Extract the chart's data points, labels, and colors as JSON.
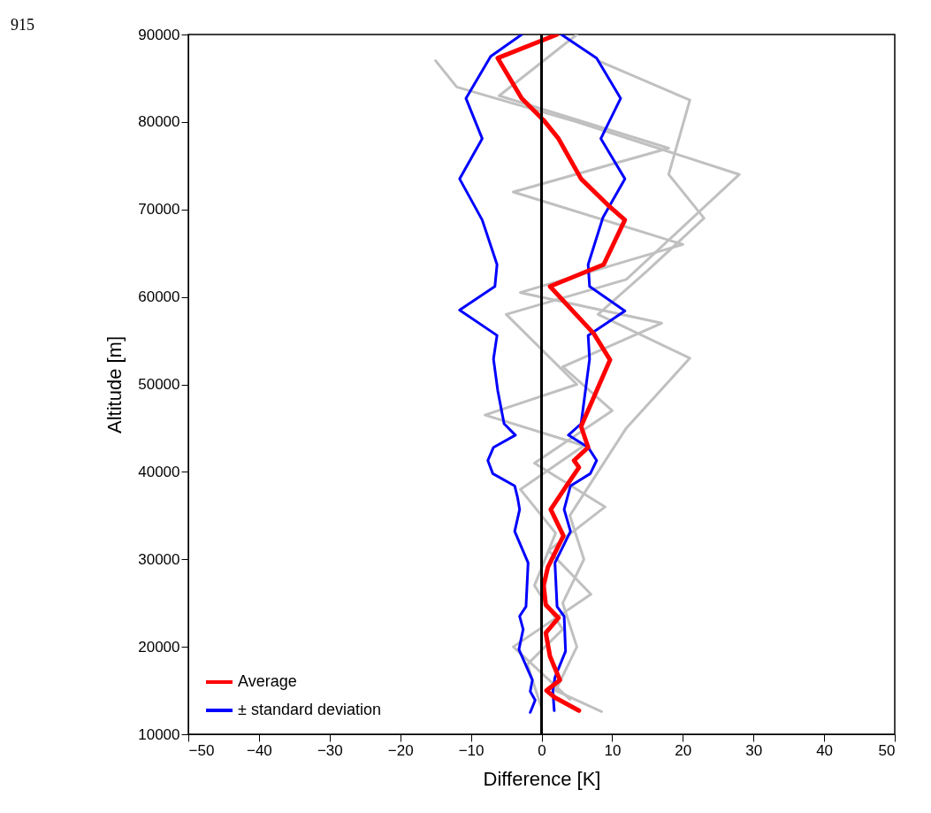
{
  "chart_data": {
    "type": "line",
    "xlabel": "Difference [K]",
    "ylabel": "Altitude [m]",
    "annotations": [
      "915"
    ],
    "xlim": [
      -50,
      50
    ],
    "xticks": [
      -50,
      -40,
      -30,
      -20,
      -10,
      0,
      10,
      20,
      30,
      40,
      50
    ],
    "ylim": [
      10000,
      90000
    ],
    "yticks": [
      10000,
      20000,
      30000,
      40000,
      50000,
      60000,
      70000,
      80000,
      90000
    ],
    "grid": false,
    "legend": "bottom left",
    "marker": "none",
    "line_style": "solid",
    "ref_lines": [
      {
        "axis": "x",
        "value": 0,
        "color": "#000000"
      }
    ],
    "series": [
      {
        "color": "#c0c0c0",
        "x": [
          8.5,
          2,
          5,
          3,
          6,
          4,
          8,
          12,
          21,
          8,
          15,
          23,
          18,
          21,
          8
        ],
        "values": [
          12600,
          15000,
          20000,
          25000,
          30000,
          35000,
          40000,
          45000,
          53000,
          58000,
          63000,
          69000,
          74000,
          82500,
          87000
        ]
      },
      {
        "color": "#c0c0c0",
        "x": [
          0,
          -2,
          3,
          -1,
          2,
          -3,
          6,
          -8,
          5,
          -5,
          12,
          28,
          5,
          -12,
          -15
        ],
        "values": [
          13000,
          18000,
          22000,
          27000,
          33000,
          38000,
          43000,
          46500,
          50000,
          58000,
          62000,
          74000,
          80000,
          84000,
          87000
        ]
      },
      {
        "color": "#c0c0c0",
        "x": [
          4,
          -4,
          7,
          1,
          9,
          -1,
          10,
          3,
          17,
          -3,
          20,
          -4,
          18,
          -6,
          5
        ],
        "values": [
          14000,
          20000,
          26000,
          31000,
          36000,
          41000,
          47000,
          52000,
          57000,
          60500,
          66000,
          72000,
          77000,
          83000,
          90000
        ]
      },
      {
        "name": "± standard deviation",
        "color": "#0000ff",
        "x": [
          -1.6,
          -0.9,
          -1.6,
          -1.3,
          -3.2,
          -2.6,
          -3.1,
          -2.2,
          -1.9,
          -3.8,
          -3.1,
          -3.4,
          -3.8,
          -6.9,
          -7.6,
          -6.8,
          -3.7,
          -5.3,
          -6.2,
          -6.8,
          -6.3,
          -11.6,
          -6.6,
          -6.3,
          -8.4,
          -11.6,
          -8.4,
          -10.7,
          -7.2,
          -2.8
        ],
        "values": [
          12500,
          13900,
          14900,
          16200,
          19700,
          22000,
          23500,
          24600,
          29600,
          33200,
          35700,
          37100,
          38400,
          39800,
          41300,
          42800,
          44200,
          45500,
          49300,
          52900,
          55600,
          58500,
          61200,
          63700,
          68800,
          73500,
          78100,
          82700,
          87500,
          90000
        ]
      },
      {
        "color": "#0000ff",
        "x": [
          1.8,
          1.6,
          1.9,
          3.4,
          3.2,
          2.2,
          1.9,
          4.1,
          3.2,
          4.1,
          6.9,
          7.8,
          6.6,
          3.8,
          5.6,
          6.8,
          6.6,
          11.8,
          6.8,
          6.6,
          8.7,
          11.8,
          8.4,
          11.2,
          7.8,
          2.8
        ],
        "values": [
          12700,
          14900,
          16500,
          19500,
          23500,
          24600,
          29600,
          33200,
          35700,
          38400,
          39800,
          41300,
          42800,
          44200,
          45500,
          52900,
          55600,
          58400,
          61200,
          63700,
          69100,
          73500,
          78100,
          82700,
          87300,
          90000
        ]
      },
      {
        "name": "Average",
        "color": "#ff0000",
        "x": [
          5.3,
          1.9,
          0.7,
          2.6,
          1.2,
          0.6,
          2.4,
          0.6,
          0.3,
          0.9,
          3.1,
          1.3,
          3.7,
          5.3,
          4.6,
          6.6,
          5.6,
          9.7,
          7.4,
          1.2,
          8.8,
          11.8,
          9.4,
          5.6,
          2.4,
          0.3,
          -2.8,
          -6.2,
          2.2
        ],
        "values": [
          12700,
          14200,
          15000,
          16200,
          18900,
          21600,
          23300,
          24800,
          27000,
          29100,
          32700,
          35700,
          38600,
          40500,
          41300,
          42800,
          45200,
          52800,
          55800,
          61200,
          63700,
          68800,
          70500,
          73500,
          78100,
          80200,
          82700,
          87300,
          90000
        ]
      }
    ]
  }
}
